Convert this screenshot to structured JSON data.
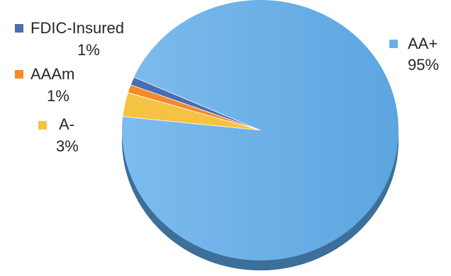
{
  "chart_data": {
    "type": "pie",
    "slices": [
      {
        "label": "AA+",
        "value": 95,
        "value_label": "95%",
        "color": "#6aaee6"
      },
      {
        "label": "A-",
        "value": 3,
        "value_label": "3%",
        "color": "#f5c342"
      },
      {
        "label": "AAAm",
        "value": 1,
        "value_label": "1%",
        "color": "#f58a2a"
      },
      {
        "label": "FDIC-Insured",
        "value": 1,
        "value_label": "1%",
        "color": "#4a6db0"
      }
    ],
    "style": "3d",
    "legend": "labels beside slices"
  }
}
